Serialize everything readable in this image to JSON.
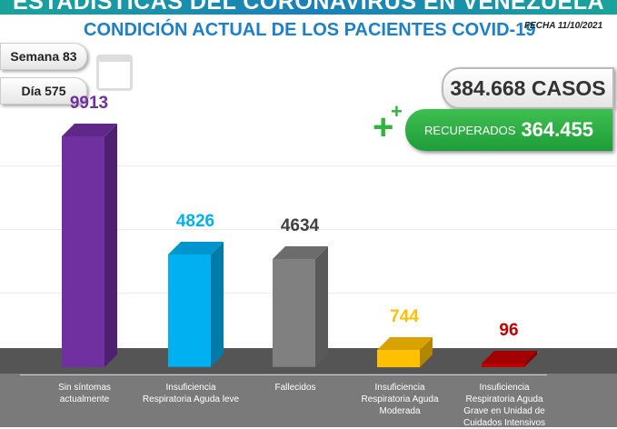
{
  "header": {
    "banner": "ESTADÍSTICAS DEL CORONAVIRUS EN VENEZUELA",
    "subtitle": "CONDICIÓN ACTUAL DE LOS PACIENTES COVID-19",
    "fecha": "FECHA 11/10/2021"
  },
  "info": {
    "semana": "Semana 83",
    "dia": "Día 575",
    "casos": "384.668 CASOS",
    "recuperados_label": "RECUPERADOS",
    "recuperados_value": "364.455"
  },
  "chart_data": {
    "type": "bar",
    "categories": [
      "Sin síntomas actualmente",
      "Insuficiencia Respiratoria Aguda leve",
      "Fallecidos",
      "Insuficiencia Respiratoria Aguda Moderada",
      "Insuficiencia Respiratoria Aguda Grave en Unidad de Cuidados Intensivos"
    ],
    "values": [
      9913,
      4826,
      4634,
      744,
      96
    ],
    "value_labels": [
      "9913",
      "4826",
      "4634",
      "744",
      "96"
    ],
    "colors": [
      "#7030a0",
      "#00b0f0",
      "#808080",
      "#ffc000",
      "#c00000"
    ],
    "label_colors": [
      "#7030a0",
      "#00b0f0",
      "#404040",
      "#ffc000",
      "#c00000"
    ]
  }
}
